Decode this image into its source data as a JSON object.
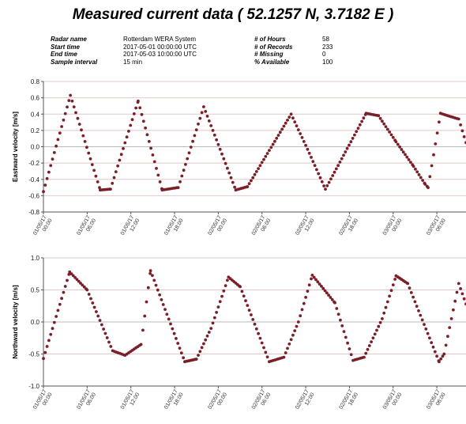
{
  "title": "Measured current data ( 52.1257 N, 3.7182 E )",
  "meta": {
    "left": [
      {
        "key": "Radar name",
        "value": "Rotterdam WERA System"
      },
      {
        "key": "Start time",
        "value": "2017-05-01 00:00:00 UTC"
      },
      {
        "key": "End time",
        "value": "2017-05-03 10:00:00 UTC"
      },
      {
        "key": "Sample interval",
        "value": "15 min"
      }
    ],
    "right": [
      {
        "key": "# of Hours",
        "value": "58"
      },
      {
        "key": "# of Records",
        "value": "233"
      },
      {
        "key": "# Missing",
        "value": "0"
      },
      {
        "key": "% Available",
        "value": "100"
      }
    ]
  },
  "chart_data": [
    {
      "type": "scatter",
      "ylabel": "Eastward velocity [m/s]",
      "ylim": [
        -0.8,
        0.8
      ],
      "yticks": [
        "0.8",
        "0.6",
        "0.4",
        "0.2",
        "0.0",
        "-0.2",
        "-0.4",
        "-0.6",
        "-0.8"
      ],
      "xlim_hours": [
        0,
        58
      ],
      "xticks": [
        "01/05/17 00:00",
        "01/05/17 06:00",
        "01/05/17 12:00",
        "01/05/17 18:00",
        "02/05/17 00:00",
        "02/05/17 06:00",
        "02/05/17 12:00",
        "02/05/17 18:00",
        "03/05/17 00:00",
        "03/05/17 06:00"
      ],
      "grid": true,
      "marker_color": "#7a1f28",
      "series": [
        {
          "points_hours_value": [
            [
              0,
              -0.55
            ],
            [
              3.7,
              0.63
            ],
            [
              7.8,
              -0.53
            ],
            [
              9.2,
              -0.52
            ],
            [
              13,
              0.56
            ],
            [
              16.3,
              -0.53
            ],
            [
              18.5,
              -0.5
            ],
            [
              22,
              0.49
            ],
            [
              26.4,
              -0.53
            ],
            [
              28,
              -0.49
            ],
            [
              34,
              0.4
            ],
            [
              36.5,
              -0.08
            ],
            [
              38.7,
              -0.52
            ],
            [
              44.3,
              0.41
            ],
            [
              46,
              0.38
            ],
            [
              48.4,
              0.06
            ],
            [
              50.8,
              -0.24
            ],
            [
              52.4,
              -0.46
            ],
            [
              52.8,
              -0.5
            ],
            [
              54.5,
              0.41
            ],
            [
              55.5,
              0.38
            ],
            [
              57,
              0.34
            ],
            [
              58,
              0.05
            ]
          ]
        }
      ]
    },
    {
      "type": "scatter",
      "ylabel": "Northward velocity [m/s]",
      "ylim": [
        -1.0,
        1.0
      ],
      "yticks": [
        "1.0",
        "0.5",
        "0.0",
        "-0.5",
        "-1.0"
      ],
      "xlim_hours": [
        0,
        58
      ],
      "xticks": [
        "01/05/17 00:00",
        "01/05/17 06:00",
        "01/05/17 12:00",
        "01/05/17 18:00",
        "02/05/17 00:00",
        "02/05/17 06:00",
        "02/05/17 12:00",
        "02/05/17 18:00",
        "03/05/17 00:00",
        "03/05/17 06:00"
      ],
      "grid": true,
      "marker_color": "#7a1f28",
      "series": [
        {
          "points_hours_value": [
            [
              0,
              -0.57
            ],
            [
              3.6,
              0.78
            ],
            [
              6,
              0.5
            ],
            [
              9.5,
              -0.45
            ],
            [
              11.2,
              -0.52
            ],
            [
              13.4,
              -0.35
            ],
            [
              14.7,
              0.8
            ],
            [
              19.4,
              -0.62
            ],
            [
              21,
              -0.58
            ],
            [
              23,
              -0.1
            ],
            [
              25.4,
              0.7
            ],
            [
              27,
              0.55
            ],
            [
              31,
              -0.62
            ],
            [
              33,
              -0.55
            ],
            [
              35,
              0.0
            ],
            [
              36.9,
              0.73
            ],
            [
              40,
              0.3
            ],
            [
              42.5,
              -0.6
            ],
            [
              44,
              -0.55
            ],
            [
              46.5,
              0.05
            ],
            [
              48.4,
              0.72
            ],
            [
              50,
              0.6
            ],
            [
              54.3,
              -0.62
            ],
            [
              55,
              -0.5
            ],
            [
              57,
              0.6
            ],
            [
              58,
              0.28
            ]
          ]
        }
      ]
    }
  ]
}
